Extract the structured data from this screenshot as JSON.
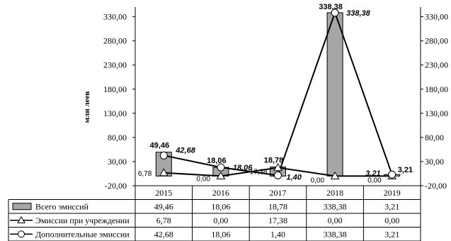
{
  "chart_data": {
    "type": "bar",
    "categories": [
      "2015",
      "2016",
      "2017",
      "2018",
      "2019"
    ],
    "ylabel": "млн леев",
    "ylim": [
      -20,
      350
    ],
    "yticks": [
      "330,00",
      "280,00",
      "230,00",
      "180,00",
      "130,00",
      "80,00",
      "30,00",
      "-20,00"
    ],
    "ytick_values": [
      330,
      280,
      230,
      180,
      130,
      80,
      30,
      -20
    ],
    "colors": {
      "bar": "#a6a6a6",
      "line": "#000000",
      "marker_fill": "#ffffff"
    },
    "legend_placement": "data-table",
    "series": [
      {
        "name": "Всего эмиссий",
        "kind": "bar",
        "marker": "square",
        "values": [
          49.46,
          18.06,
          18.78,
          338.38,
          3.21
        ],
        "labels": [
          "49,46",
          "18,06",
          "18,78",
          "338,38",
          "3,21"
        ]
      },
      {
        "name": "Эмиссии при учреждении",
        "kind": "line",
        "marker": "triangle",
        "values": [
          6.78,
          0.0,
          17.38,
          0.0,
          0.0
        ],
        "labels": [
          "6,78",
          "0,00",
          "17,38",
          "0,00",
          "0,00"
        ]
      },
      {
        "name": "Дополнительные эмиссии",
        "kind": "line",
        "marker": "circle",
        "values": [
          42.68,
          18.06,
          1.4,
          338.38,
          3.21
        ],
        "labels": [
          "42,68",
          "18,06",
          "1,40",
          "338,38",
          "3,21"
        ]
      }
    ]
  }
}
